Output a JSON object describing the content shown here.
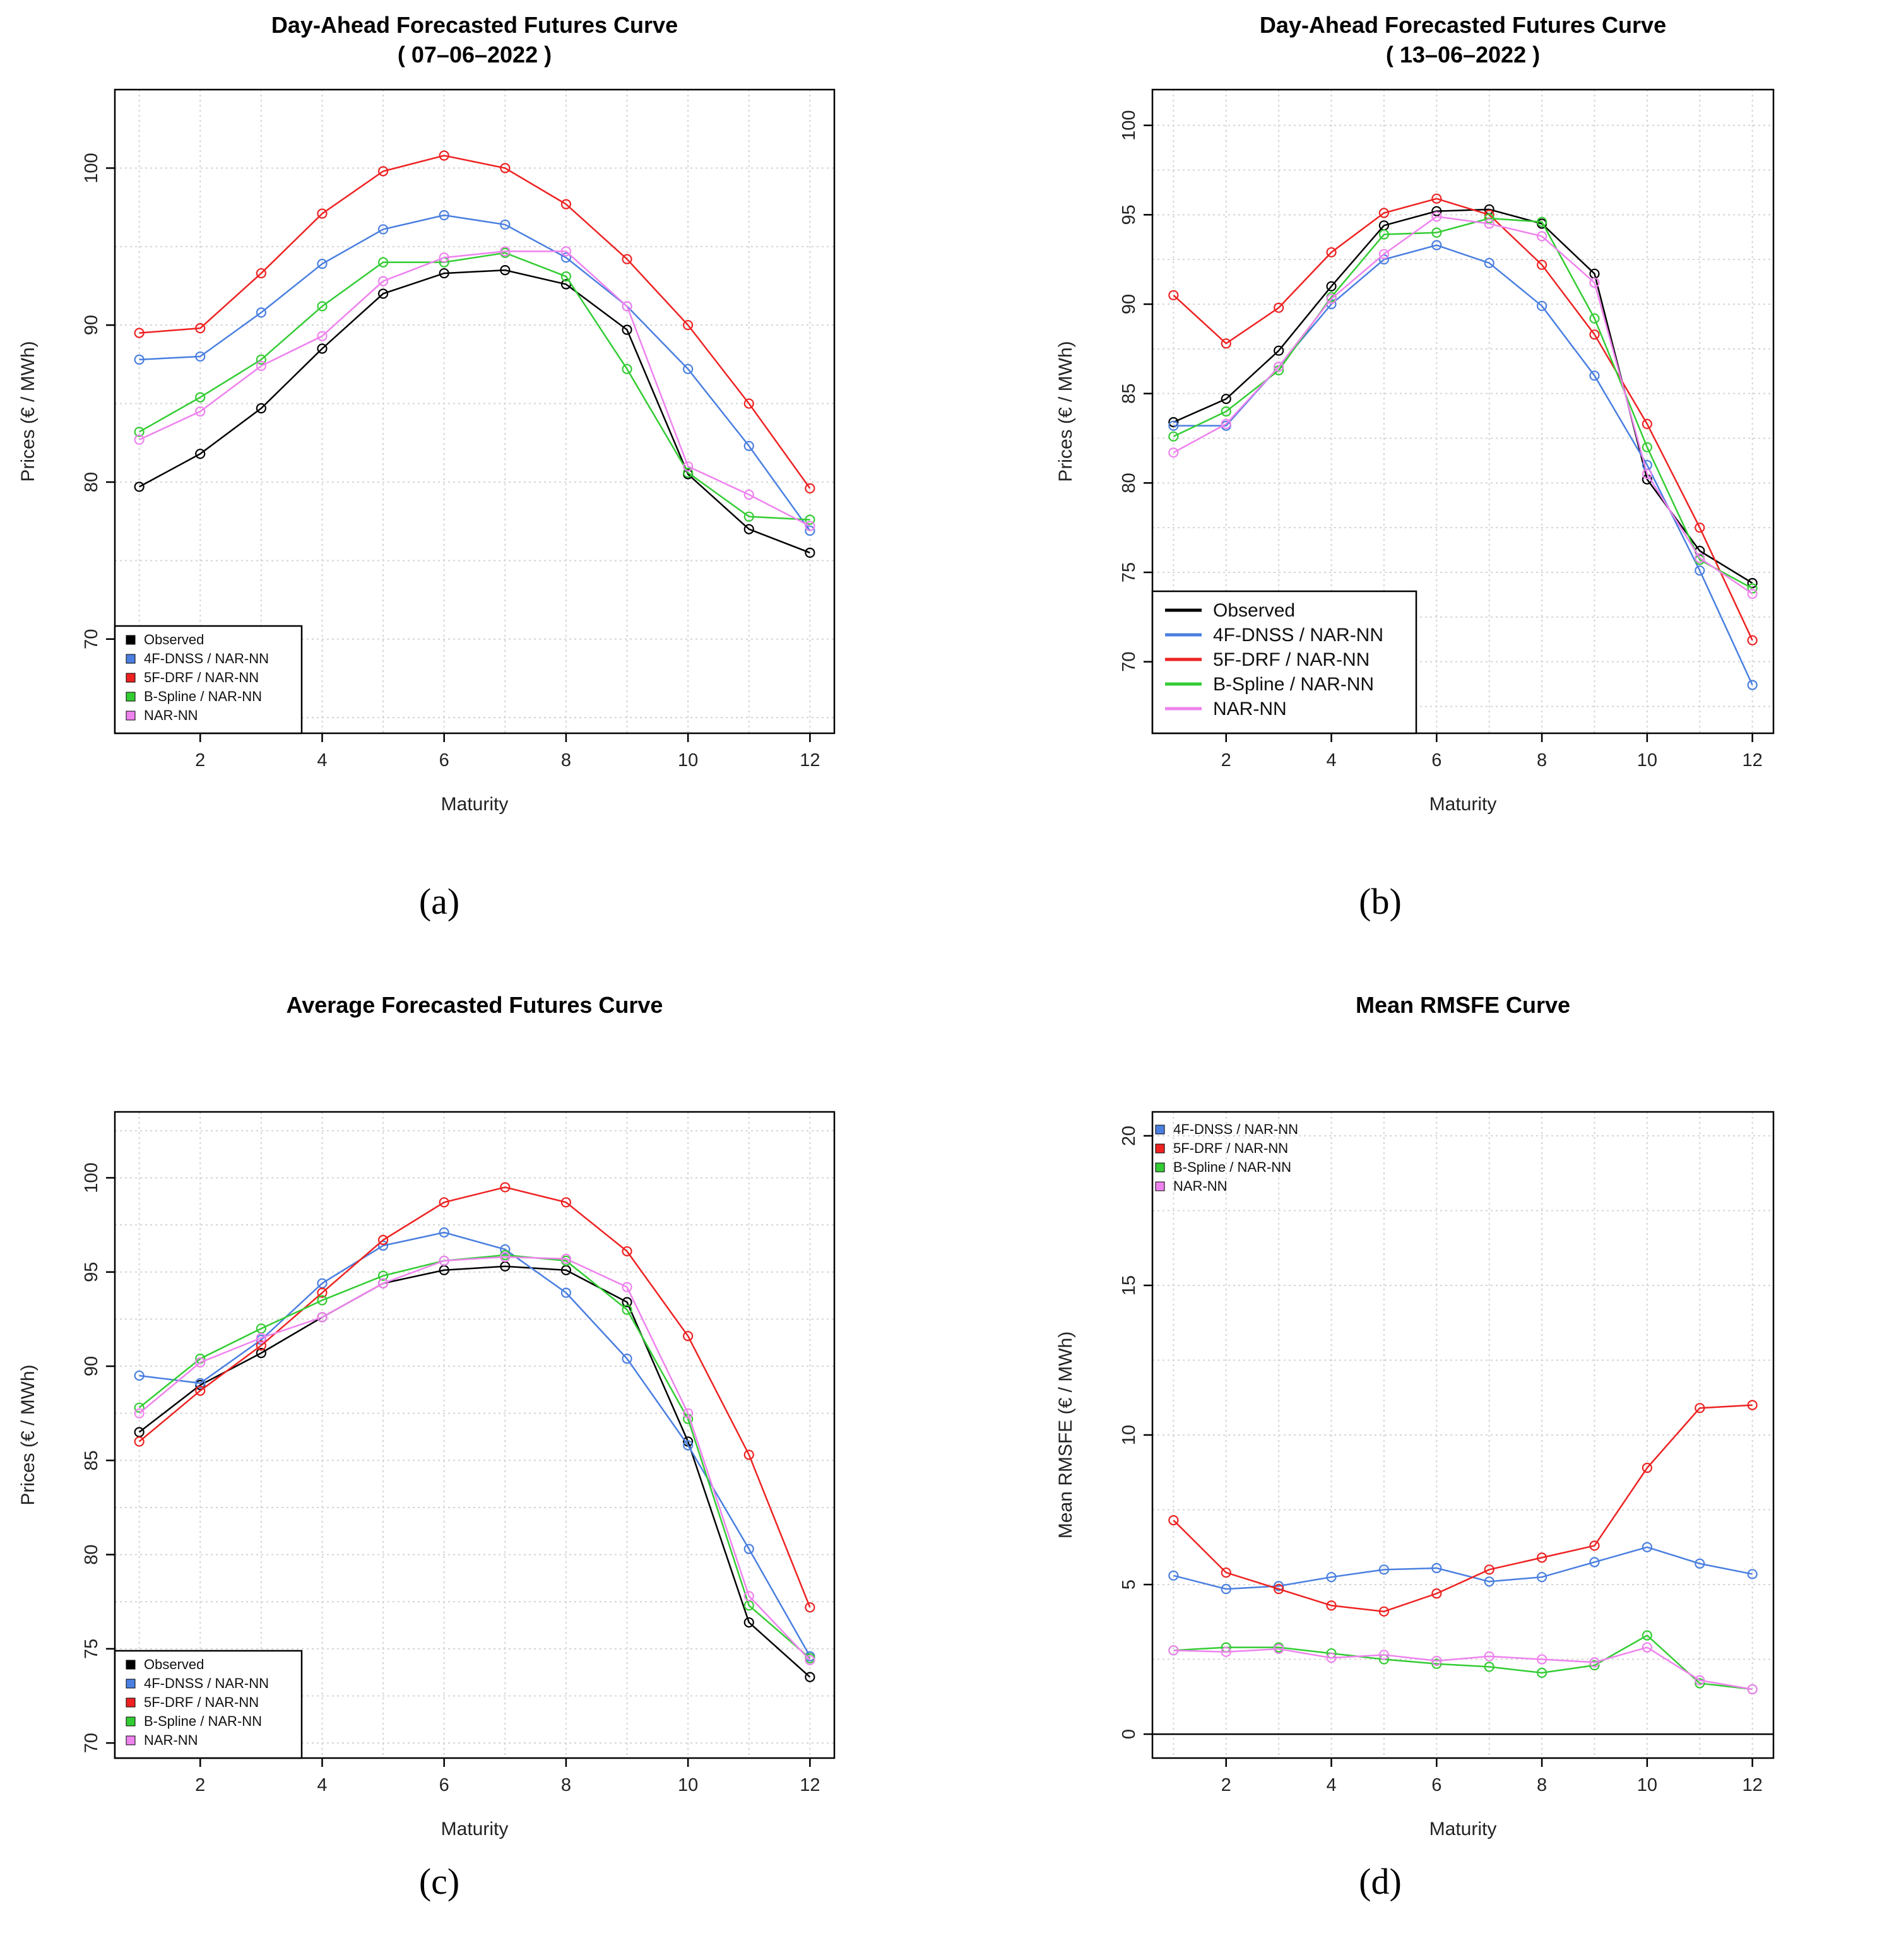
{
  "colors": {
    "Observed": "#000000",
    "4F-DNSS / NAR-NN": "#4a7fe0",
    "5F-DRF / NAR-NN": "#ee2222",
    "B-Spline / NAR-NN": "#33cc33",
    "NAR-NN": "#ee82ee"
  },
  "chart_data": [
    {
      "id": "a",
      "type": "line",
      "caption": "(a)",
      "title_lines": [
        "Day-Ahead Forecasted Futures Curve",
        "( 07–06–2022 )"
      ],
      "xlabel": "Maturity",
      "ylabel": "Prices (€ / MWh)",
      "xlim": [
        0.6,
        12.4
      ],
      "ylim": [
        64,
        105
      ],
      "xticks": [
        2,
        4,
        6,
        8,
        10,
        12
      ],
      "yticks": [
        70,
        80,
        90,
        100
      ],
      "legend_style": "box",
      "legend": [
        "Observed",
        "4F-DNSS / NAR-NN",
        "5F-DRF / NAR-NN",
        "B-Spline / NAR-NN",
        "NAR-NN"
      ],
      "x": [
        1,
        2,
        3,
        4,
        5,
        6,
        7,
        8,
        9,
        10,
        11,
        12
      ],
      "series": [
        {
          "name": "Observed",
          "values": [
            79.7,
            81.8,
            84.7,
            88.5,
            92.0,
            93.3,
            93.5,
            92.6,
            89.7,
            80.5,
            77.0,
            75.5
          ]
        },
        {
          "name": "4F-DNSS / NAR-NN",
          "values": [
            87.8,
            88.0,
            90.8,
            93.9,
            96.1,
            97.0,
            96.4,
            94.3,
            91.2,
            87.2,
            82.3,
            76.9
          ]
        },
        {
          "name": "5F-DRF / NAR-NN",
          "values": [
            89.5,
            89.8,
            93.3,
            97.1,
            99.8,
            100.8,
            100.0,
            97.7,
            94.2,
            90.0,
            85.0,
            79.6
          ]
        },
        {
          "name": "B-Spline / NAR-NN",
          "values": [
            83.2,
            85.4,
            87.8,
            91.2,
            94.0,
            94.0,
            94.6,
            93.1,
            87.2,
            80.6,
            77.8,
            77.6
          ]
        },
        {
          "name": "NAR-NN",
          "values": [
            82.7,
            84.5,
            87.4,
            89.3,
            92.8,
            94.3,
            94.7,
            94.7,
            91.2,
            81.0,
            79.2,
            77.2
          ]
        }
      ]
    },
    {
      "id": "b",
      "type": "line",
      "caption": "(b)",
      "title_lines": [
        "Day-Ahead Forecasted Futures Curve",
        "( 13–06–2022 )"
      ],
      "xlabel": "Maturity",
      "ylabel": "Prices (€ / MWh)",
      "xlim": [
        0.6,
        12.4
      ],
      "ylim": [
        66,
        102
      ],
      "xticks": [
        2,
        4,
        6,
        8,
        10,
        12
      ],
      "yticks": [
        70,
        75,
        80,
        85,
        90,
        95,
        100
      ],
      "legend_style": "line",
      "legend": [
        "Observed",
        "4F-DNSS / NAR-NN",
        "5F-DRF / NAR-NN",
        "B-Spline / NAR-NN",
        "NAR-NN"
      ],
      "x": [
        1,
        2,
        3,
        4,
        5,
        6,
        7,
        8,
        9,
        10,
        11,
        12
      ],
      "series": [
        {
          "name": "Observed",
          "values": [
            83.4,
            84.7,
            87.4,
            91.0,
            94.4,
            95.2,
            95.3,
            94.5,
            91.7,
            80.2,
            76.2,
            74.4
          ]
        },
        {
          "name": "4F-DNSS / NAR-NN",
          "values": [
            83.2,
            83.2,
            86.5,
            90.0,
            92.5,
            93.3,
            92.3,
            89.9,
            86.0,
            81.0,
            75.1,
            68.7
          ]
        },
        {
          "name": "5F-DRF / NAR-NN",
          "values": [
            90.5,
            87.8,
            89.8,
            92.9,
            95.1,
            95.9,
            95.0,
            92.2,
            88.3,
            83.3,
            77.5,
            71.2
          ]
        },
        {
          "name": "B-Spline / NAR-NN",
          "values": [
            82.6,
            84.0,
            86.3,
            90.4,
            93.9,
            94.0,
            94.8,
            94.6,
            89.2,
            82.0,
            75.7,
            74.1
          ]
        },
        {
          "name": "NAR-NN",
          "values": [
            81.7,
            83.3,
            86.5,
            90.3,
            92.8,
            94.9,
            94.5,
            93.8,
            91.2,
            80.5,
            75.8,
            73.8
          ]
        }
      ]
    },
    {
      "id": "c",
      "type": "line",
      "caption": "(c)",
      "title_lines": [
        "Average Forecasted Futures Curve"
      ],
      "xlabel": "Maturity",
      "ylabel": "Prices (€ / MWh)",
      "xlim": [
        0.6,
        12.4
      ],
      "ylim": [
        69.2,
        103.5
      ],
      "xticks": [
        2,
        4,
        6,
        8,
        10,
        12
      ],
      "yticks": [
        70,
        75,
        80,
        85,
        90,
        95,
        100
      ],
      "legend_style": "box",
      "legend": [
        "Observed",
        "4F-DNSS / NAR-NN",
        "5F-DRF / NAR-NN",
        "B-Spline / NAR-NN",
        "NAR-NN"
      ],
      "x": [
        1,
        2,
        3,
        4,
        5,
        6,
        7,
        8,
        9,
        10,
        11,
        12
      ],
      "series": [
        {
          "name": "Observed",
          "values": [
            86.5,
            89.0,
            90.7,
            92.6,
            94.4,
            95.1,
            95.3,
            95.1,
            93.4,
            86.0,
            76.4,
            73.5
          ]
        },
        {
          "name": "4F-DNSS / NAR-NN",
          "values": [
            89.5,
            89.1,
            91.4,
            94.4,
            96.4,
            97.1,
            96.2,
            93.9,
            90.4,
            85.8,
            80.3,
            74.6
          ]
        },
        {
          "name": "5F-DRF / NAR-NN",
          "values": [
            86.0,
            88.7,
            91.1,
            93.9,
            96.7,
            98.7,
            99.5,
            98.7,
            96.1,
            91.6,
            85.3,
            77.2
          ]
        },
        {
          "name": "B-Spline / NAR-NN",
          "values": [
            87.8,
            90.4,
            92.0,
            93.5,
            94.8,
            95.6,
            95.9,
            95.6,
            93.0,
            87.2,
            77.3,
            74.5
          ]
        },
        {
          "name": "NAR-NN",
          "values": [
            87.5,
            90.2,
            91.5,
            92.6,
            94.4,
            95.6,
            95.8,
            95.7,
            94.2,
            87.5,
            77.8,
            74.4
          ]
        }
      ]
    },
    {
      "id": "d",
      "type": "line",
      "caption": "(d)",
      "title_lines": [
        "Mean RMSFE Curve"
      ],
      "xlabel": "Maturity",
      "ylabel": "Mean RMSFE (€ / MWh)",
      "xlim": [
        0.6,
        12.4
      ],
      "ylim": [
        -0.8,
        20.8
      ],
      "xticks": [
        2,
        4,
        6,
        8,
        10,
        12
      ],
      "yticks": [
        0,
        5,
        10,
        15,
        20
      ],
      "zero_line": true,
      "legend_style": "box-noborder",
      "legend": [
        "4F-DNSS / NAR-NN",
        "5F-DRF / NAR-NN",
        "B-Spline / NAR-NN",
        "NAR-NN"
      ],
      "x": [
        1,
        2,
        3,
        4,
        5,
        6,
        7,
        8,
        9,
        10,
        11,
        12
      ],
      "series": [
        {
          "name": "4F-DNSS / NAR-NN",
          "values": [
            5.3,
            4.85,
            4.95,
            5.25,
            5.5,
            5.55,
            5.1,
            5.25,
            5.75,
            6.25,
            5.7,
            5.35
          ]
        },
        {
          "name": "5F-DRF / NAR-NN",
          "values": [
            7.15,
            5.4,
            4.85,
            4.3,
            4.1,
            4.7,
            5.5,
            5.9,
            6.3,
            8.9,
            10.9,
            11.0
          ]
        },
        {
          "name": "B-Spline / NAR-NN",
          "values": [
            2.8,
            2.9,
            2.9,
            2.7,
            2.5,
            2.35,
            2.25,
            2.05,
            2.3,
            3.3,
            1.7,
            1.5
          ]
        },
        {
          "name": "NAR-NN",
          "values": [
            2.8,
            2.75,
            2.85,
            2.55,
            2.65,
            2.45,
            2.6,
            2.5,
            2.4,
            2.9,
            1.8,
            1.5
          ]
        }
      ]
    }
  ]
}
